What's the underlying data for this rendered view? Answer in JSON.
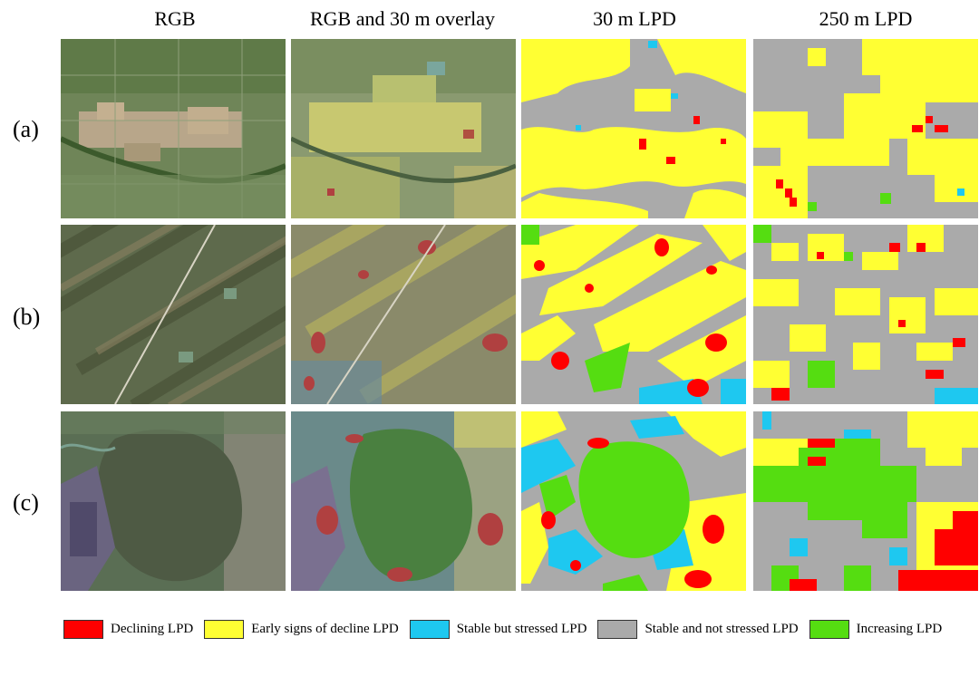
{
  "columns": [
    {
      "title": "RGB"
    },
    {
      "title": "RGB and 30 m overlay"
    },
    {
      "title": "30 m LPD"
    },
    {
      "title": "250 m LPD"
    }
  ],
  "rows": [
    {
      "label": "(a)"
    },
    {
      "label": "(b)"
    },
    {
      "label": "(c)"
    }
  ],
  "legend": [
    {
      "label": "Declining LPD",
      "color": "#ff0000"
    },
    {
      "label": "Early signs of decline LPD",
      "color": "#ffff33"
    },
    {
      "label": "Stable but stressed LPD",
      "color": "#1ec8f0"
    },
    {
      "label": "Stable and not stressed LPD",
      "color": "#aaaaaa"
    },
    {
      "label": "Increasing LPD",
      "color": "#55dd11"
    }
  ]
}
